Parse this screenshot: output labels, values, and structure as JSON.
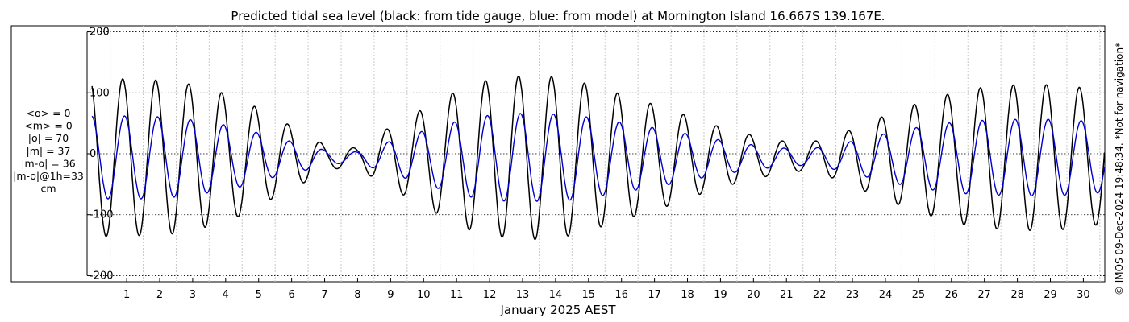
{
  "chart_data": {
    "type": "line",
    "title": "Predicted tidal sea level (black: from tide gauge, blue: from model) at Mornington Island 16.667S 139.167E.",
    "xlabel": "January 2025 AEST",
    "ylabel": "",
    "x_ticks": [
      "1",
      "2",
      "3",
      "4",
      "5",
      "6",
      "7",
      "8",
      "9",
      "10",
      "11",
      "12",
      "13",
      "14",
      "15",
      "16",
      "17",
      "18",
      "19",
      "20",
      "21",
      "22",
      "23",
      "24",
      "25",
      "26",
      "27",
      "28",
      "29",
      "30"
    ],
    "y_ticks": [
      "-200",
      "-100",
      "0",
      "100",
      "200"
    ],
    "xlim_days": [
      0.3,
      31.15
    ],
    "ylim": [
      -210,
      210
    ],
    "grid": true,
    "series": [
      {
        "name": "from tide gauge",
        "color": "#000000",
        "amplitude_envelope": [
          {
            "day": 0.5,
            "amp": 130
          },
          {
            "day": 2,
            "amp": 128
          },
          {
            "day": 3,
            "amp": 125
          },
          {
            "day": 4,
            "amp": 113
          },
          {
            "day": 5,
            "amp": 95
          },
          {
            "day": 6,
            "amp": 65
          },
          {
            "day": 7,
            "amp": 38
          },
          {
            "day": 7.5,
            "amp": 20
          },
          {
            "day": 8,
            "amp": 18
          },
          {
            "day": 8.5,
            "amp": 15
          },
          {
            "day": 9,
            "amp": 35
          },
          {
            "day": 10,
            "amp": 65
          },
          {
            "day": 11,
            "amp": 95
          },
          {
            "day": 12,
            "amp": 122
          },
          {
            "day": 13,
            "amp": 132
          },
          {
            "day": 14,
            "amp": 135
          },
          {
            "day": 15,
            "amp": 128
          },
          {
            "day": 16,
            "amp": 112
          },
          {
            "day": 17,
            "amp": 95
          },
          {
            "day": 18,
            "amp": 78
          },
          {
            "day": 19,
            "amp": 58
          },
          {
            "day": 20,
            "amp": 42
          },
          {
            "day": 21,
            "amp": 30
          },
          {
            "day": 22,
            "amp": 22
          },
          {
            "day": 23,
            "amp": 35
          },
          {
            "day": 24,
            "amp": 58
          },
          {
            "day": 25,
            "amp": 80
          },
          {
            "day": 26,
            "amp": 98
          },
          {
            "day": 27,
            "amp": 112
          },
          {
            "day": 28,
            "amp": 118
          },
          {
            "day": 29,
            "amp": 120
          },
          {
            "day": 30,
            "amp": 118
          },
          {
            "day": 31,
            "amp": 110
          }
        ]
      },
      {
        "name": "from model",
        "color": "#0000cc",
        "amplitude_envelope": [
          {
            "day": 0.5,
            "amp": 68
          },
          {
            "day": 2,
            "amp": 68
          },
          {
            "day": 3,
            "amp": 65
          },
          {
            "day": 4,
            "amp": 58
          },
          {
            "day": 5,
            "amp": 48
          },
          {
            "day": 6,
            "amp": 32
          },
          {
            "day": 7,
            "amp": 20
          },
          {
            "day": 7.5,
            "amp": 12
          },
          {
            "day": 8,
            "amp": 10
          },
          {
            "day": 8.5,
            "amp": 9
          },
          {
            "day": 9,
            "amp": 18
          },
          {
            "day": 10,
            "amp": 35
          },
          {
            "day": 11,
            "amp": 52
          },
          {
            "day": 12,
            "amp": 66
          },
          {
            "day": 13,
            "amp": 72
          },
          {
            "day": 14,
            "amp": 72
          },
          {
            "day": 15,
            "amp": 70
          },
          {
            "day": 16,
            "amp": 62
          },
          {
            "day": 17,
            "amp": 53
          },
          {
            "day": 18,
            "amp": 44
          },
          {
            "day": 19,
            "amp": 33
          },
          {
            "day": 20,
            "amp": 24
          },
          {
            "day": 21,
            "amp": 17
          },
          {
            "day": 22,
            "amp": 13
          },
          {
            "day": 23,
            "amp": 20
          },
          {
            "day": 24,
            "amp": 33
          },
          {
            "day": 25,
            "amp": 45
          },
          {
            "day": 26,
            "amp": 54
          },
          {
            "day": 27,
            "amp": 60
          },
          {
            "day": 28,
            "amp": 62
          },
          {
            "day": 29,
            "amp": 63
          },
          {
            "day": 30,
            "amp": 62
          },
          {
            "day": 31,
            "amp": 58
          }
        ]
      }
    ],
    "stats_lines": [
      "<o> = 0",
      "<m> = 0",
      "|o| = 70",
      "|m| = 37",
      "|m-o| = 36",
      "|m-o|@1h=33",
      "cm"
    ],
    "side_note": "© IMOS 09-Dec-2024 19:48:34. *Not for navigation*"
  }
}
